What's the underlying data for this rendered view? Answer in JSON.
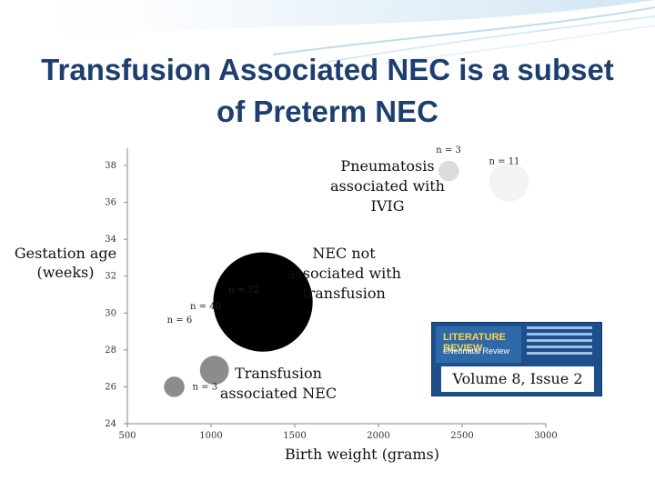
{
  "slide": {
    "title_line1": "Transfusion Associated NEC is a subset",
    "title_line2": "of Preterm NEC"
  },
  "badge": {
    "logo_text": "LITERATURE REVIEW",
    "sub_text": "eNeonatal Review",
    "volume": "Volume 8, Issue 2"
  },
  "chart_data": {
    "type": "scatter",
    "subtype": "bubble",
    "title": "",
    "xlabel": "Birth weight (grams)",
    "ylabel": "Gestation age (weeks)",
    "ylabel_lines": [
      "Gestation age",
      "(weeks)"
    ],
    "xlim": [
      500,
      3000
    ],
    "ylim": [
      24,
      38
    ],
    "x_ticks": [
      500,
      1000,
      1500,
      2000,
      2500,
      3000
    ],
    "y_ticks": [
      24,
      26,
      28,
      30,
      32,
      34,
      36,
      38
    ],
    "grid": false,
    "series": [
      {
        "points": [
          {
            "x": 780,
            "y": 26.0,
            "n": 3,
            "label": "n = 3"
          },
          {
            "x": 1020,
            "y": 26.9,
            "n": 6,
            "label": "n = 6"
          },
          {
            "x": 1310,
            "y": 30.6,
            "n": 72,
            "label": "n = 72"
          },
          {
            "x": 1310,
            "y": 30.6,
            "n": 40,
            "label": "n = 40"
          },
          {
            "x": 2420,
            "y": 37.7,
            "n": 3,
            "label": "n = 3"
          },
          {
            "x": 2780,
            "y": 37.1,
            "n": 11,
            "label": "n = 11"
          }
        ]
      }
    ],
    "annotations": [
      {
        "text_lines": [
          "Pneumatosis",
          "associated with",
          "IVIG"
        ]
      },
      {
        "text_lines": [
          "NEC not",
          "associated with",
          "transfusion"
        ]
      },
      {
        "text_lines": [
          "Transfusion",
          "associated NEC"
        ]
      }
    ]
  }
}
